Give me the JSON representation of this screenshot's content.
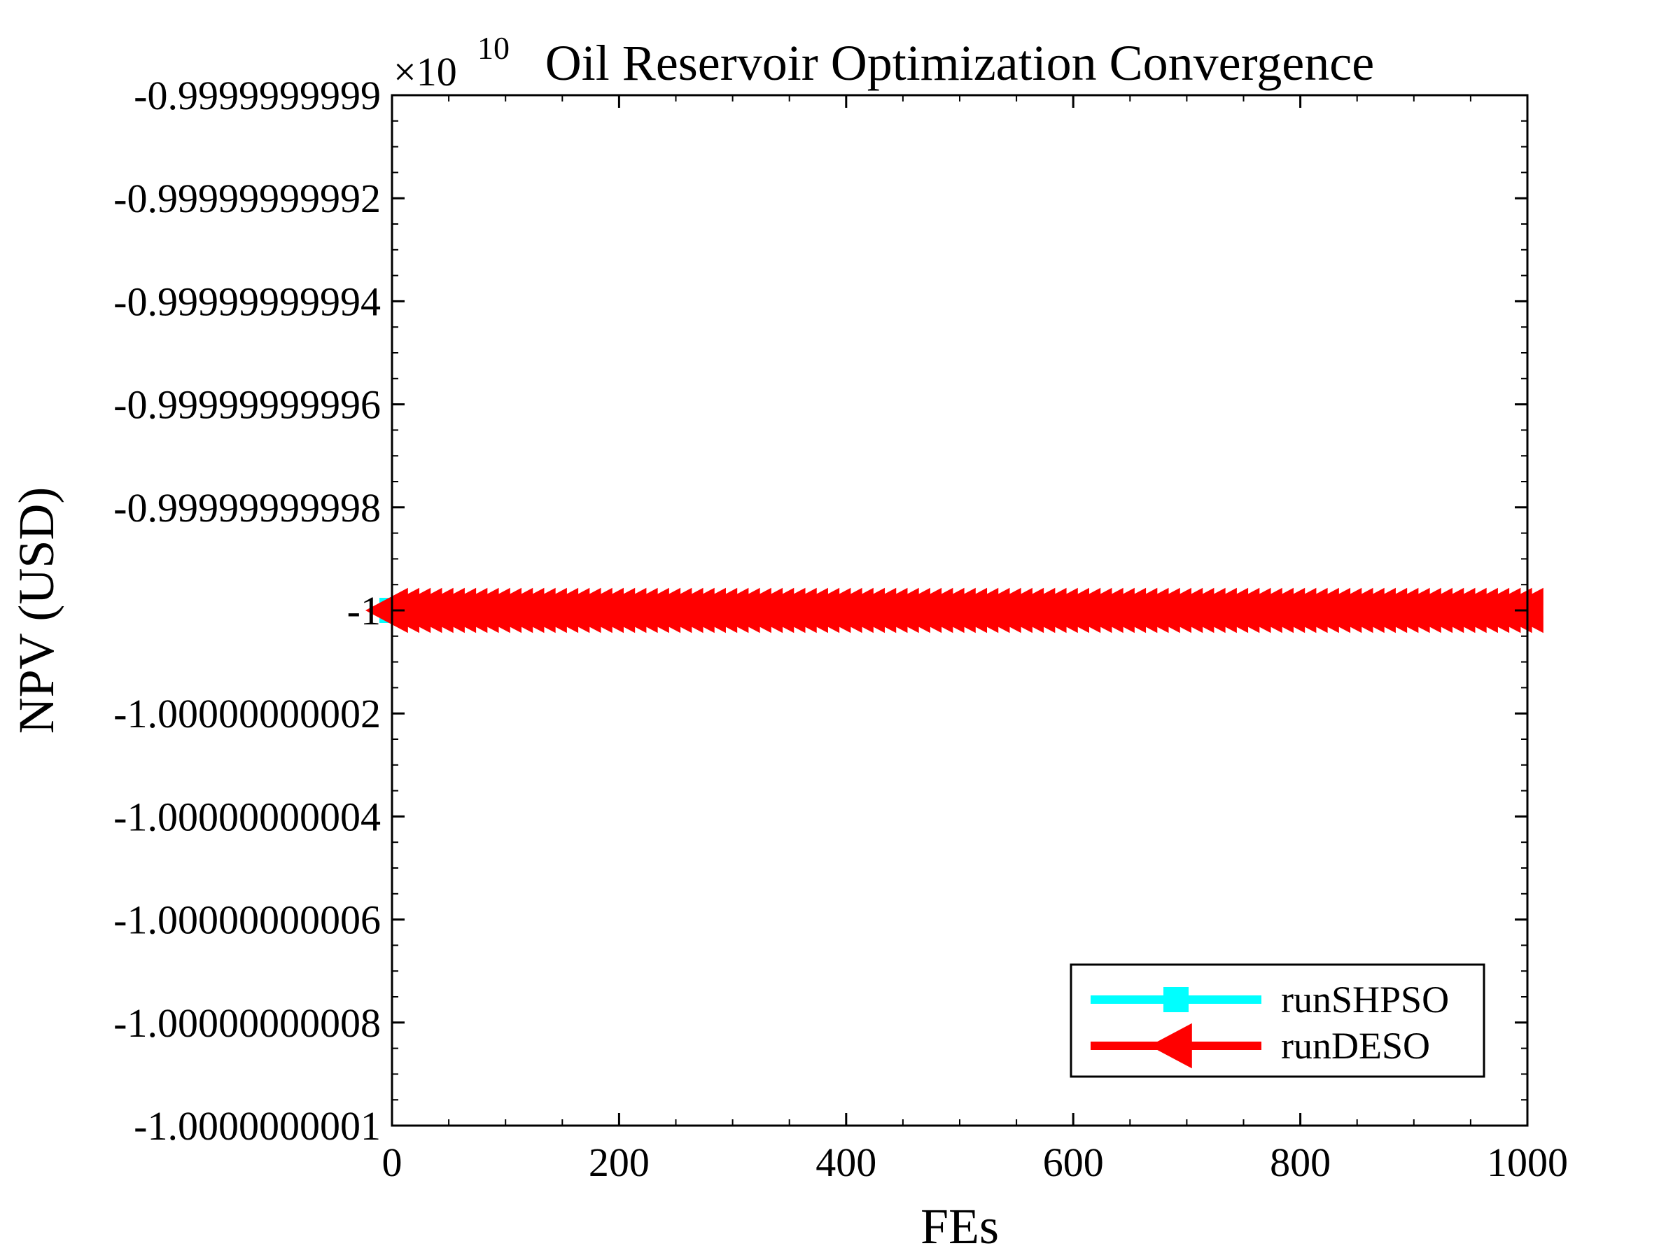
{
  "chart_data": {
    "type": "line",
    "title": "Oil Reservoir Optimization Convergence",
    "xlabel": "FEs",
    "ylabel": "NPV (USD)",
    "y_exponent_label": {
      "base": "×10",
      "power": "10"
    },
    "xlim": [
      0,
      1000
    ],
    "ylim": [
      -1.0000000001,
      -0.9999999999
    ],
    "x_ticks": [
      0,
      200,
      400,
      600,
      800,
      1000
    ],
    "x_tick_labels": [
      "0",
      "200",
      "400",
      "600",
      "800",
      "1000"
    ],
    "y_ticks": [
      -0.9999999999,
      -0.99999999992,
      -0.99999999994,
      -0.99999999996,
      -0.99999999998,
      -1,
      -1.00000000002,
      -1.00000000004,
      -1.00000000006,
      -1.00000000008,
      -1.0000000001
    ],
    "y_tick_labels": [
      "-0.9999999999",
      "-0.99999999992",
      "-0.99999999994",
      "-0.99999999996",
      "-0.99999999998",
      "-1",
      "-1.00000000002",
      "-1.00000000004",
      "-1.00000000006",
      "-1.00000000008",
      "-1.0000000001"
    ],
    "grid": false,
    "legend_position": "bottom-right",
    "series": [
      {
        "name": "runSHPSO",
        "color": "#00ffff",
        "marker": "square",
        "x": [
          0,
          10,
          20,
          30,
          40,
          50,
          60,
          70,
          80,
          90,
          100,
          110,
          120,
          130,
          140,
          150,
          160,
          170,
          180,
          190,
          200,
          210,
          220,
          230,
          240,
          250,
          260,
          270,
          280,
          290,
          300,
          310,
          320,
          330,
          340,
          350,
          360,
          370,
          380,
          390,
          400,
          410,
          420,
          430,
          440,
          450,
          460,
          470,
          480,
          490,
          500,
          510,
          520,
          530,
          540,
          550,
          560,
          570,
          580,
          590,
          600,
          610,
          620,
          630,
          640,
          650,
          660,
          670,
          680,
          690,
          700,
          710,
          720,
          730,
          740,
          750,
          760,
          770,
          780,
          790,
          800,
          810,
          820,
          830,
          840,
          850,
          860,
          870,
          880,
          890,
          900,
          910,
          920,
          930,
          940,
          950,
          960,
          970,
          980,
          990,
          1000
        ],
        "y": [
          -1,
          -1,
          -1,
          -1,
          -1,
          -1,
          -1,
          -1,
          -1,
          -1,
          -1,
          -1,
          -1,
          -1,
          -1,
          -1,
          -1,
          -1,
          -1,
          -1,
          -1,
          -1,
          -1,
          -1,
          -1,
          -1,
          -1,
          -1,
          -1,
          -1,
          -1,
          -1,
          -1,
          -1,
          -1,
          -1,
          -1,
          -1,
          -1,
          -1,
          -1,
          -1,
          -1,
          -1,
          -1,
          -1,
          -1,
          -1,
          -1,
          -1,
          -1,
          -1,
          -1,
          -1,
          -1,
          -1,
          -1,
          -1,
          -1,
          -1,
          -1,
          -1,
          -1,
          -1,
          -1,
          -1,
          -1,
          -1,
          -1,
          -1,
          -1,
          -1,
          -1,
          -1,
          -1,
          -1,
          -1,
          -1,
          -1,
          -1,
          -1,
          -1,
          -1,
          -1,
          -1,
          -1,
          -1,
          -1,
          -1,
          -1,
          -1,
          -1,
          -1,
          -1,
          -1,
          -1,
          -1,
          -1,
          -1,
          -1,
          -1
        ]
      },
      {
        "name": "runDESO",
        "color": "#ff0000",
        "marker": "triangle-left",
        "x": [
          0,
          10,
          20,
          30,
          40,
          50,
          60,
          70,
          80,
          90,
          100,
          110,
          120,
          130,
          140,
          150,
          160,
          170,
          180,
          190,
          200,
          210,
          220,
          230,
          240,
          250,
          260,
          270,
          280,
          290,
          300,
          310,
          320,
          330,
          340,
          350,
          360,
          370,
          380,
          390,
          400,
          410,
          420,
          430,
          440,
          450,
          460,
          470,
          480,
          490,
          500,
          510,
          520,
          530,
          540,
          550,
          560,
          570,
          580,
          590,
          600,
          610,
          620,
          630,
          640,
          650,
          660,
          670,
          680,
          690,
          700,
          710,
          720,
          730,
          740,
          750,
          760,
          770,
          780,
          790,
          800,
          810,
          820,
          830,
          840,
          850,
          860,
          870,
          880,
          890,
          900,
          910,
          920,
          930,
          940,
          950,
          960,
          970,
          980,
          990,
          1000
        ],
        "y": [
          -1,
          -1,
          -1,
          -1,
          -1,
          -1,
          -1,
          -1,
          -1,
          -1,
          -1,
          -1,
          -1,
          -1,
          -1,
          -1,
          -1,
          -1,
          -1,
          -1,
          -1,
          -1,
          -1,
          -1,
          -1,
          -1,
          -1,
          -1,
          -1,
          -1,
          -1,
          -1,
          -1,
          -1,
          -1,
          -1,
          -1,
          -1,
          -1,
          -1,
          -1,
          -1,
          -1,
          -1,
          -1,
          -1,
          -1,
          -1,
          -1,
          -1,
          -1,
          -1,
          -1,
          -1,
          -1,
          -1,
          -1,
          -1,
          -1,
          -1,
          -1,
          -1,
          -1,
          -1,
          -1,
          -1,
          -1,
          -1,
          -1,
          -1,
          -1,
          -1,
          -1,
          -1,
          -1,
          -1,
          -1,
          -1,
          -1,
          -1,
          -1,
          -1,
          -1,
          -1,
          -1,
          -1,
          -1,
          -1,
          -1,
          -1,
          -1,
          -1,
          -1,
          -1,
          -1,
          -1,
          -1,
          -1,
          -1,
          -1,
          -1
        ]
      }
    ]
  }
}
